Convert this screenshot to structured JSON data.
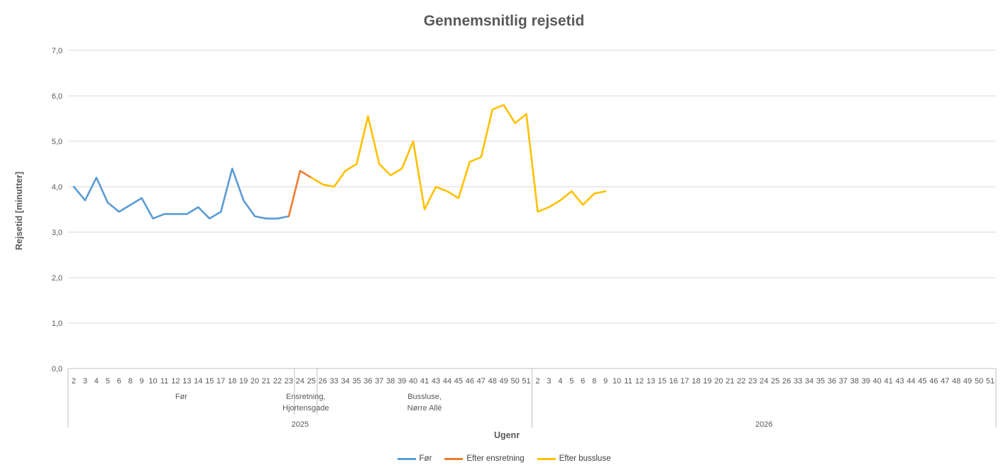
{
  "chart_data": {
    "type": "line",
    "title": "Gennemsnitlig rejsetid",
    "xlabel": "Ugenr",
    "ylabel": "Rejsetid [minutter]",
    "ylim": [
      0,
      7
    ],
    "grid": "horizontal",
    "legend_position": "bottom",
    "y_ticks": [
      {
        "value": 0,
        "label": "0,0"
      },
      {
        "value": 1,
        "label": "1,0"
      },
      {
        "value": 2,
        "label": "2,0"
      },
      {
        "value": 3,
        "label": "3,0"
      },
      {
        "value": 4,
        "label": "4,0"
      },
      {
        "value": 5,
        "label": "5,0"
      },
      {
        "value": 6,
        "label": "6,0"
      },
      {
        "value": 7,
        "label": "7,0"
      }
    ],
    "categories": [
      "2",
      "3",
      "4",
      "5",
      "6",
      "8",
      "9",
      "10",
      "11",
      "12",
      "13",
      "14",
      "15",
      "17",
      "18",
      "19",
      "20",
      "21",
      "22",
      "23",
      "24",
      "25",
      "26",
      "33",
      "34",
      "35",
      "36",
      "37",
      "38",
      "39",
      "40",
      "41",
      "43",
      "44",
      "45",
      "46",
      "47",
      "48",
      "49",
      "50",
      "51",
      "2",
      "3",
      "4",
      "5",
      "6",
      "8",
      "9",
      "10",
      "11",
      "12",
      "13",
      "15",
      "16",
      "17",
      "18",
      "19",
      "20",
      "21",
      "22",
      "23",
      "24",
      "25",
      "26",
      "33",
      "34",
      "35",
      "36",
      "37",
      "38",
      "39",
      "40",
      "41",
      "43",
      "44",
      "45",
      "46",
      "47",
      "48",
      "49",
      "50",
      "51"
    ],
    "period_groups": [
      {
        "label": "Før",
        "start": 0,
        "count": 20
      },
      {
        "label": "Ensretning,\nHjortensgade",
        "start": 20,
        "count": 2
      },
      {
        "label": "Bussluse,\nNørre Allé",
        "start": 22,
        "count": 19
      },
      {
        "label": "",
        "start": 41,
        "count": 41
      }
    ],
    "year_groups": [
      {
        "label": "2025",
        "start": 0,
        "count": 41
      },
      {
        "label": "2026",
        "start": 41,
        "count": 41
      }
    ],
    "series": [
      {
        "name": "Før",
        "color": "#5B9BD5",
        "start_index": 0,
        "values": [
          4.0,
          3.7,
          4.2,
          3.65,
          3.45,
          3.6,
          3.75,
          3.3,
          3.4,
          3.4,
          3.4,
          3.55,
          3.3,
          3.45,
          4.4,
          3.7,
          3.35,
          3.3,
          3.3,
          3.35
        ]
      },
      {
        "name": "Efter ensretning",
        "color": "#ED7D31",
        "start_index": 19,
        "values": [
          3.35,
          4.35,
          4.2
        ]
      },
      {
        "name": "Efter bussluse",
        "color": "#FFC000",
        "start_index": 21,
        "values": [
          4.2,
          4.05,
          4.0,
          4.35,
          4.5,
          5.55,
          4.5,
          4.25,
          4.4,
          5.0,
          3.5,
          4.0,
          3.9,
          3.75,
          4.55,
          4.65,
          5.7,
          5.8,
          5.4,
          5.6,
          3.45,
          3.55,
          3.7,
          3.9,
          3.6,
          3.85,
          3.9
        ]
      }
    ],
    "colors": {
      "title_text": "#595959",
      "axis_text": "#595959",
      "gridline": "#D9D9D9",
      "axis_line": "#BFBFBF"
    }
  }
}
